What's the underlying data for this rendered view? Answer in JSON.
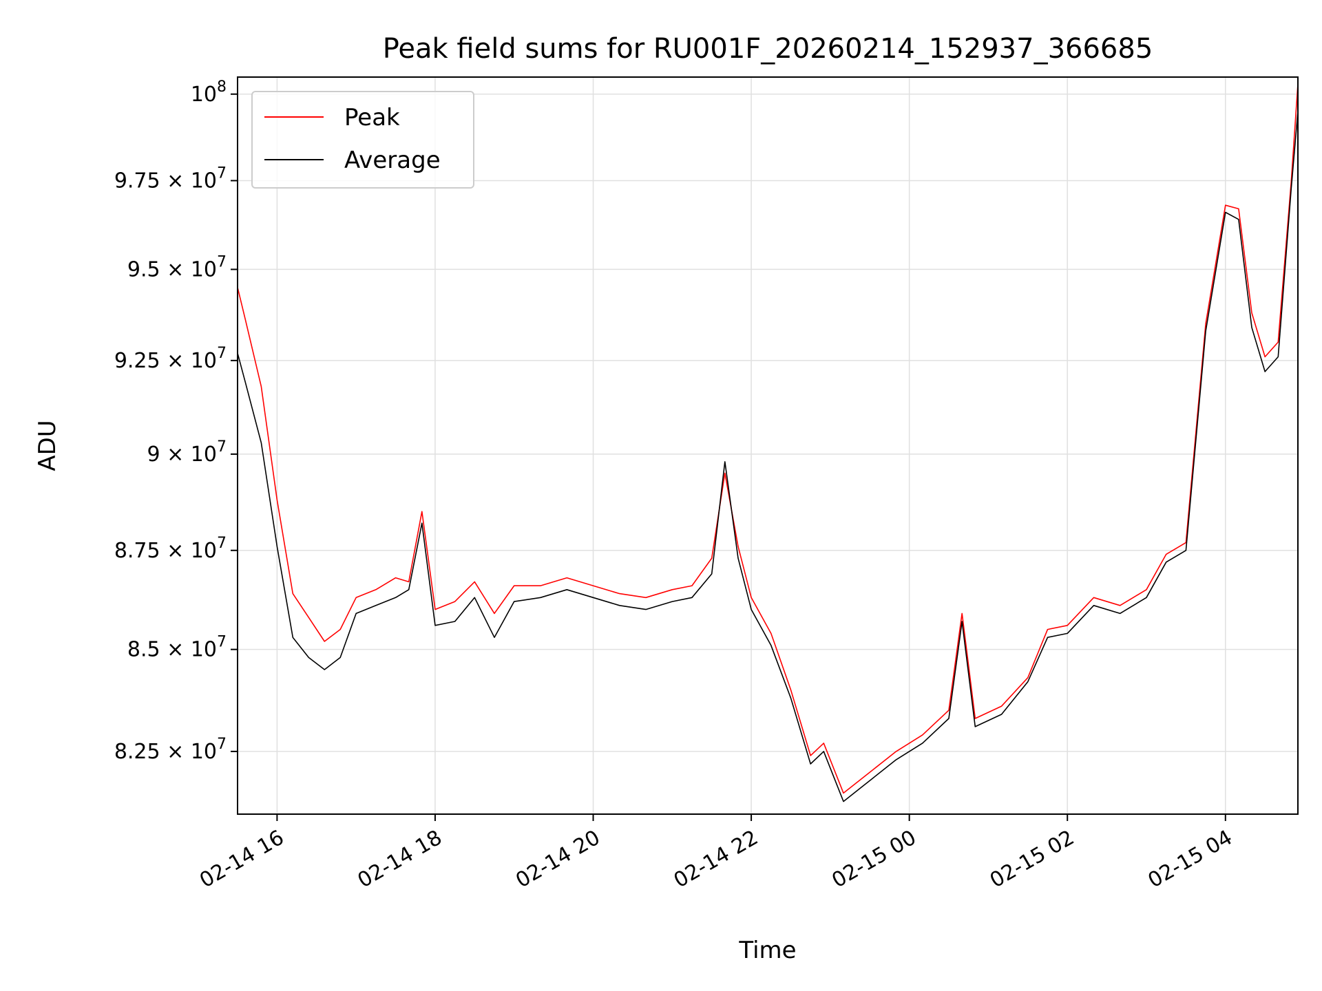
{
  "chart_data": {
    "type": "line",
    "title": "Peak field sums for RU001F_20260214_152937_366685",
    "xlabel": "Time",
    "ylabel": "ADU",
    "grid": true,
    "legend": "top-left",
    "yscale": "log",
    "xlim": [
      "2026-02-14 15:30",
      "2026-02-15 04:55"
    ],
    "ylim": [
      81000000,
      100500000
    ],
    "x_ticks": [
      "02-14 16",
      "02-14 18",
      "02-14 20",
      "02-14 22",
      "02-15 00",
      "02-15 02",
      "02-15 04"
    ],
    "y_ticks": [
      {
        "value": 82500000,
        "mant": "8.25",
        "exp": "7"
      },
      {
        "value": 85000000,
        "mant": "8.5",
        "exp": "7"
      },
      {
        "value": 87500000,
        "mant": "8.75",
        "exp": "7"
      },
      {
        "value": 90000000,
        "mant": "9",
        "exp": "7"
      },
      {
        "value": 92500000,
        "mant": "9.25",
        "exp": "7"
      },
      {
        "value": 95000000,
        "mant": "9.5",
        "exp": "7"
      },
      {
        "value": 97500000,
        "mant": "9.75",
        "exp": "7"
      },
      {
        "value": 100000000,
        "mant": "",
        "exp": "8"
      }
    ],
    "series": [
      {
        "name": "Peak",
        "color": "#ff0000",
        "x": [
          "2026-02-14 15:30",
          "2026-02-14 15:36",
          "2026-02-14 15:48",
          "2026-02-14 16:00",
          "2026-02-14 16:12",
          "2026-02-14 16:24",
          "2026-02-14 16:36",
          "2026-02-14 16:48",
          "2026-02-14 17:00",
          "2026-02-14 17:15",
          "2026-02-14 17:30",
          "2026-02-14 17:40",
          "2026-02-14 17:50",
          "2026-02-14 18:00",
          "2026-02-14 18:15",
          "2026-02-14 18:30",
          "2026-02-14 18:45",
          "2026-02-14 19:00",
          "2026-02-14 19:20",
          "2026-02-14 19:40",
          "2026-02-14 20:00",
          "2026-02-14 20:20",
          "2026-02-14 20:40",
          "2026-02-14 21:00",
          "2026-02-14 21:15",
          "2026-02-14 21:30",
          "2026-02-14 21:40",
          "2026-02-14 21:50",
          "2026-02-14 22:00",
          "2026-02-14 22:15",
          "2026-02-14 22:30",
          "2026-02-14 22:45",
          "2026-02-14 22:55",
          "2026-02-14 23:10",
          "2026-02-14 23:30",
          "2026-02-14 23:50",
          "2026-02-15 00:10",
          "2026-02-15 00:30",
          "2026-02-15 00:40",
          "2026-02-15 00:50",
          "2026-02-15 01:10",
          "2026-02-15 01:30",
          "2026-02-15 01:45",
          "2026-02-15 02:00",
          "2026-02-15 02:20",
          "2026-02-15 02:40",
          "2026-02-15 03:00",
          "2026-02-15 03:15",
          "2026-02-15 03:30",
          "2026-02-15 03:45",
          "2026-02-15 04:00",
          "2026-02-15 04:10",
          "2026-02-15 04:20",
          "2026-02-15 04:30",
          "2026-02-15 04:40",
          "2026-02-15 04:50",
          "2026-02-15 04:55"
        ],
        "values": [
          94500000,
          93600000,
          91800000,
          88800000,
          86400000,
          85800000,
          85200000,
          85500000,
          86300000,
          86500000,
          86800000,
          86700000,
          88500000,
          86000000,
          86200000,
          86700000,
          85900000,
          86600000,
          86600000,
          86800000,
          86600000,
          86400000,
          86300000,
          86500000,
          86600000,
          87300000,
          89500000,
          87600000,
          86300000,
          85400000,
          84000000,
          82400000,
          82700000,
          81500000,
          82000000,
          82500000,
          82900000,
          83500000,
          85900000,
          83300000,
          83600000,
          84300000,
          85500000,
          85600000,
          86300000,
          86100000,
          86500000,
          87400000,
          87700000,
          93500000,
          96800000,
          96700000,
          93800000,
          92600000,
          93000000,
          97500000,
          100300000
        ]
      },
      {
        "name": "Average",
        "color": "#000000",
        "x": [
          "2026-02-14 15:30",
          "2026-02-14 15:36",
          "2026-02-14 15:48",
          "2026-02-14 16:00",
          "2026-02-14 16:12",
          "2026-02-14 16:24",
          "2026-02-14 16:36",
          "2026-02-14 16:48",
          "2026-02-14 17:00",
          "2026-02-14 17:15",
          "2026-02-14 17:30",
          "2026-02-14 17:40",
          "2026-02-14 17:50",
          "2026-02-14 18:00",
          "2026-02-14 18:15",
          "2026-02-14 18:30",
          "2026-02-14 18:45",
          "2026-02-14 19:00",
          "2026-02-14 19:20",
          "2026-02-14 19:40",
          "2026-02-14 20:00",
          "2026-02-14 20:20",
          "2026-02-14 20:40",
          "2026-02-14 21:00",
          "2026-02-14 21:15",
          "2026-02-14 21:30",
          "2026-02-14 21:40",
          "2026-02-14 21:50",
          "2026-02-14 22:00",
          "2026-02-14 22:15",
          "2026-02-14 22:30",
          "2026-02-14 22:45",
          "2026-02-14 22:55",
          "2026-02-14 23:10",
          "2026-02-14 23:30",
          "2026-02-14 23:50",
          "2026-02-15 00:10",
          "2026-02-15 00:30",
          "2026-02-15 00:40",
          "2026-02-15 00:50",
          "2026-02-15 01:10",
          "2026-02-15 01:30",
          "2026-02-15 01:45",
          "2026-02-15 02:00",
          "2026-02-15 02:20",
          "2026-02-15 02:40",
          "2026-02-15 03:00",
          "2026-02-15 03:15",
          "2026-02-15 03:30",
          "2026-02-15 03:45",
          "2026-02-15 04:00",
          "2026-02-15 04:10",
          "2026-02-15 04:20",
          "2026-02-15 04:30",
          "2026-02-15 04:40",
          "2026-02-15 04:50",
          "2026-02-15 04:55"
        ],
        "values": [
          92700000,
          91900000,
          90300000,
          87600000,
          85300000,
          84800000,
          84500000,
          84800000,
          85900000,
          86100000,
          86300000,
          86500000,
          88200000,
          85600000,
          85700000,
          86300000,
          85300000,
          86200000,
          86300000,
          86500000,
          86300000,
          86100000,
          86000000,
          86200000,
          86300000,
          86900000,
          89800000,
          87300000,
          86000000,
          85100000,
          83800000,
          82200000,
          82500000,
          81300000,
          81800000,
          82300000,
          82700000,
          83300000,
          85700000,
          83100000,
          83400000,
          84200000,
          85300000,
          85400000,
          86100000,
          85900000,
          86300000,
          87200000,
          87500000,
          93300000,
          96600000,
          96400000,
          93400000,
          92200000,
          92600000,
          97300000,
          99500000
        ]
      }
    ]
  }
}
